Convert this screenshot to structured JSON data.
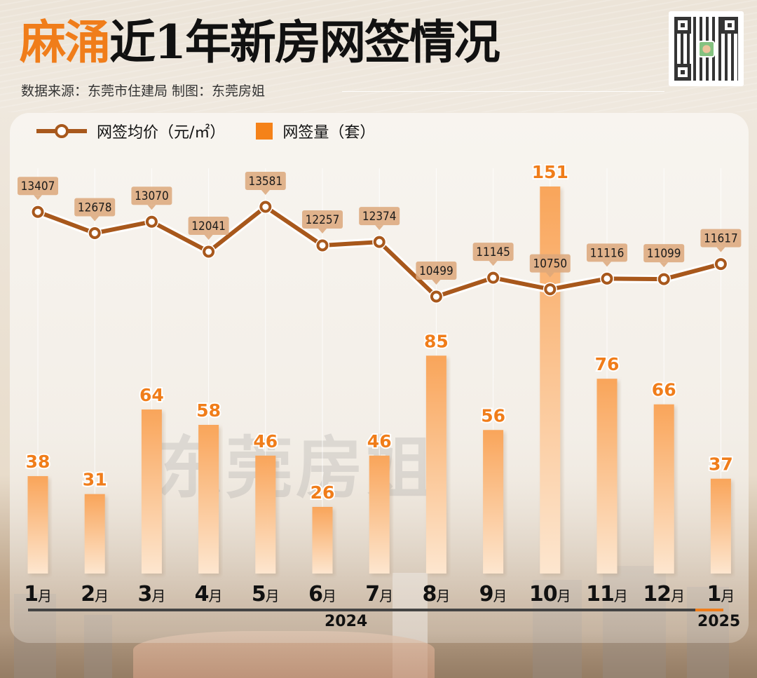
{
  "header": {
    "title_accent": "麻涌",
    "title_rest": "近1年新房网签情况",
    "subtitle": "数据来源：东莞市住建局 制图：东莞房姐"
  },
  "qr": {
    "icon": "qr-code-icon"
  },
  "legend": {
    "line_label": "网签均价（元/㎡）",
    "bar_label": "网签量（套）"
  },
  "watermark": "东莞房姐",
  "axis": {
    "months": [
      {
        "n": "1",
        "u": "月"
      },
      {
        "n": "2",
        "u": "月"
      },
      {
        "n": "3",
        "u": "月"
      },
      {
        "n": "4",
        "u": "月"
      },
      {
        "n": "5",
        "u": "月"
      },
      {
        "n": "6",
        "u": "月"
      },
      {
        "n": "7",
        "u": "月"
      },
      {
        "n": "8",
        "u": "月"
      },
      {
        "n": "9",
        "u": "月"
      },
      {
        "n": "10",
        "u": "月"
      },
      {
        "n": "11",
        "u": "月"
      },
      {
        "n": "12",
        "u": "月"
      },
      {
        "n": "1",
        "u": "月"
      }
    ],
    "year_2024": "2024",
    "year_2025": "2025"
  },
  "colors": {
    "accent": "#f07d1a",
    "line": "#a8581c",
    "bar_top": "#f9a55a",
    "bar_bottom": "#fde3c8"
  },
  "chart_data": {
    "type": "bar+line",
    "title": "麻涌近1年新房网签情况",
    "subtitle": "数据来源：东莞市住建局 制图：东莞房姐",
    "categories": [
      "2024-1月",
      "2024-2月",
      "2024-3月",
      "2024-4月",
      "2024-5月",
      "2024-6月",
      "2024-7月",
      "2024-8月",
      "2024-9月",
      "2024-10月",
      "2024-11月",
      "2024-12月",
      "2025-1月"
    ],
    "series": [
      {
        "name": "网签量（套）",
        "type": "bar",
        "values": [
          38,
          31,
          64,
          58,
          46,
          26,
          46,
          85,
          56,
          151,
          76,
          66,
          37
        ]
      },
      {
        "name": "网签均价（元/㎡）",
        "type": "line",
        "values": [
          13407,
          12678,
          13070,
          12041,
          13581,
          12257,
          12374,
          10499,
          11145,
          10750,
          11116,
          11099,
          11617
        ]
      }
    ],
    "xlabel": "",
    "ylabel": "",
    "legend_position": "top-left",
    "grid": false
  }
}
